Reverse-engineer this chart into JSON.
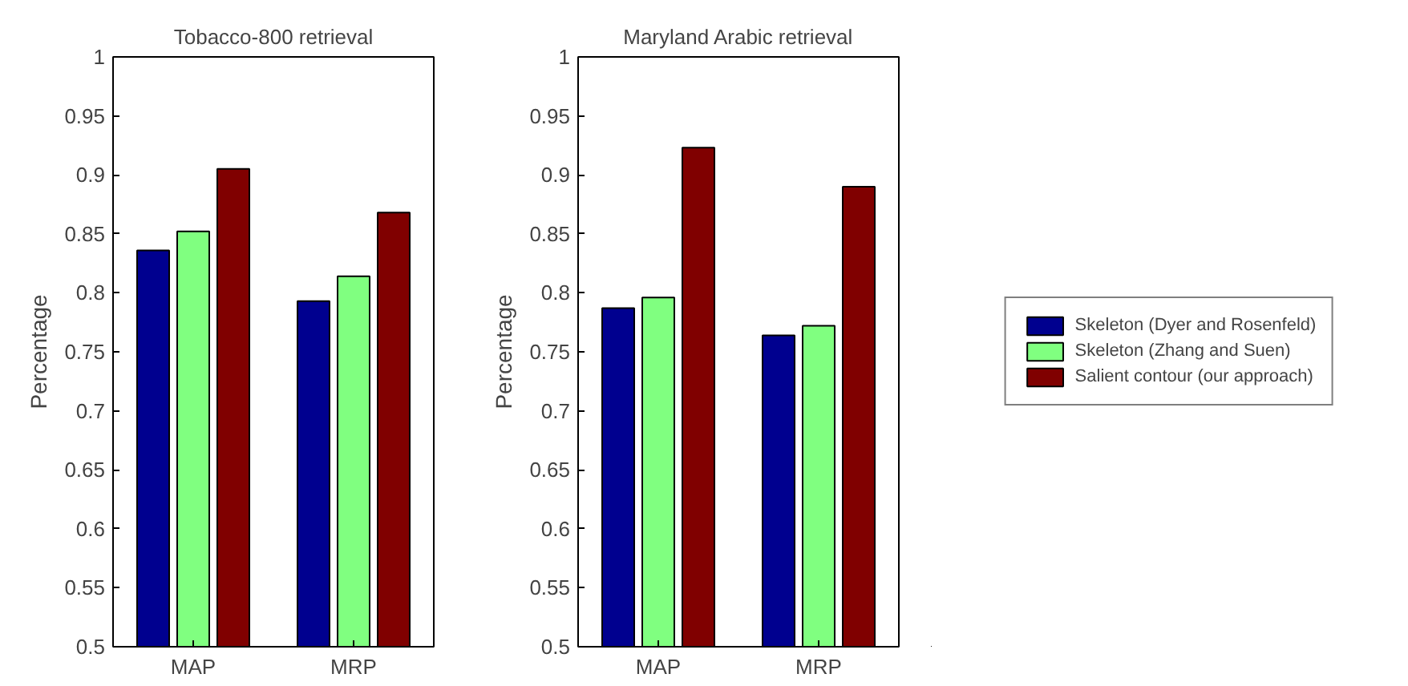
{
  "chart_data": [
    {
      "type": "bar",
      "title": "Tobacco-800 retrieval",
      "ylabel": "Percentage",
      "categories": [
        "MAP",
        "MRP"
      ],
      "ylim": [
        0.5,
        1
      ],
      "yticks": [
        0.5,
        0.55,
        0.6,
        0.65,
        0.7,
        0.75,
        0.8,
        0.85,
        0.9,
        0.95,
        1
      ],
      "grid": false,
      "legend": false,
      "series": [
        {
          "color": "#00008f",
          "values": [
            0.836,
            0.793
          ]
        },
        {
          "color": "#80ff80",
          "values": [
            0.852,
            0.814
          ]
        },
        {
          "color": "#800000",
          "values": [
            0.905,
            0.868
          ]
        }
      ]
    },
    {
      "type": "bar",
      "title": "Maryland Arabic retrieval",
      "ylabel": "Percentage",
      "categories": [
        "MAP",
        "MRP"
      ],
      "ylim": [
        0.5,
        1
      ],
      "yticks": [
        0.5,
        0.55,
        0.6,
        0.65,
        0.7,
        0.75,
        0.8,
        0.85,
        0.9,
        0.95,
        1
      ],
      "grid": false,
      "legend": "right",
      "series": [
        {
          "name": "Skeleton (Dyer and Rosenfeld)",
          "color": "#00008f",
          "values": [
            0.787,
            0.764
          ]
        },
        {
          "name": "Skeleton (Zhang and Suen)",
          "color": "#80ff80",
          "values": [
            0.796,
            0.772
          ]
        },
        {
          "name": "Salient contour (our approach)",
          "color": "#800000",
          "values": [
            0.923,
            0.89
          ]
        }
      ]
    }
  ]
}
